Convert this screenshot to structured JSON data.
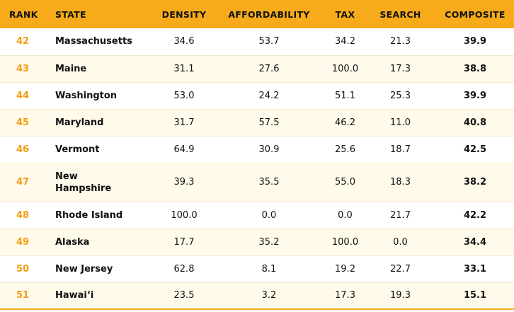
{
  "table": {
    "headers": {
      "rank": "RANK",
      "state": "STATE",
      "density": "DENSITY",
      "affordability": "AFFORDABILITY",
      "tax": "TAX",
      "search": "SEARCH",
      "composite": "COMPOSITE"
    },
    "rows": [
      {
        "rank": "42",
        "state": "Massachusetts",
        "density": "34.6",
        "affordability": "53.7",
        "tax": "34.2",
        "search": "21.3",
        "composite": "39.9"
      },
      {
        "rank": "43",
        "state": "Maine",
        "density": "31.1",
        "affordability": "27.6",
        "tax": "100.0",
        "search": "17.3",
        "composite": "38.8"
      },
      {
        "rank": "44",
        "state": "Washington",
        "density": "53.0",
        "affordability": "24.2",
        "tax": "51.1",
        "search": "25.3",
        "composite": "39.9"
      },
      {
        "rank": "45",
        "state": "Maryland",
        "density": "31.7",
        "affordability": "57.5",
        "tax": "46.2",
        "search": "11.0",
        "composite": "40.8"
      },
      {
        "rank": "46",
        "state": "Vermont",
        "density": "64.9",
        "affordability": "30.9",
        "tax": "25.6",
        "search": "18.7",
        "composite": "42.5"
      },
      {
        "rank": "47",
        "state": "New Hampshire",
        "density": "39.3",
        "affordability": "35.5",
        "tax": "55.0",
        "search": "18.3",
        "composite": "38.2"
      },
      {
        "rank": "48",
        "state": "Rhode Island",
        "density": "100.0",
        "affordability": "0.0",
        "tax": "0.0",
        "search": "21.7",
        "composite": "42.2"
      },
      {
        "rank": "49",
        "state": "Alaska",
        "density": "17.7",
        "affordability": "35.2",
        "tax": "100.0",
        "search": "0.0",
        "composite": "34.4"
      },
      {
        "rank": "50",
        "state": "New Jersey",
        "density": "62.8",
        "affordability": "8.1",
        "tax": "19.2",
        "search": "22.7",
        "composite": "33.1"
      },
      {
        "rank": "51",
        "state": "Hawai‘i",
        "density": "23.5",
        "affordability": "3.2",
        "tax": "17.3",
        "search": "19.3",
        "composite": "15.1"
      }
    ]
  },
  "colors": {
    "header_bg": "#f7ab1a",
    "rank_text": "#f39c12",
    "alt_row_bg": "#fffaea"
  }
}
